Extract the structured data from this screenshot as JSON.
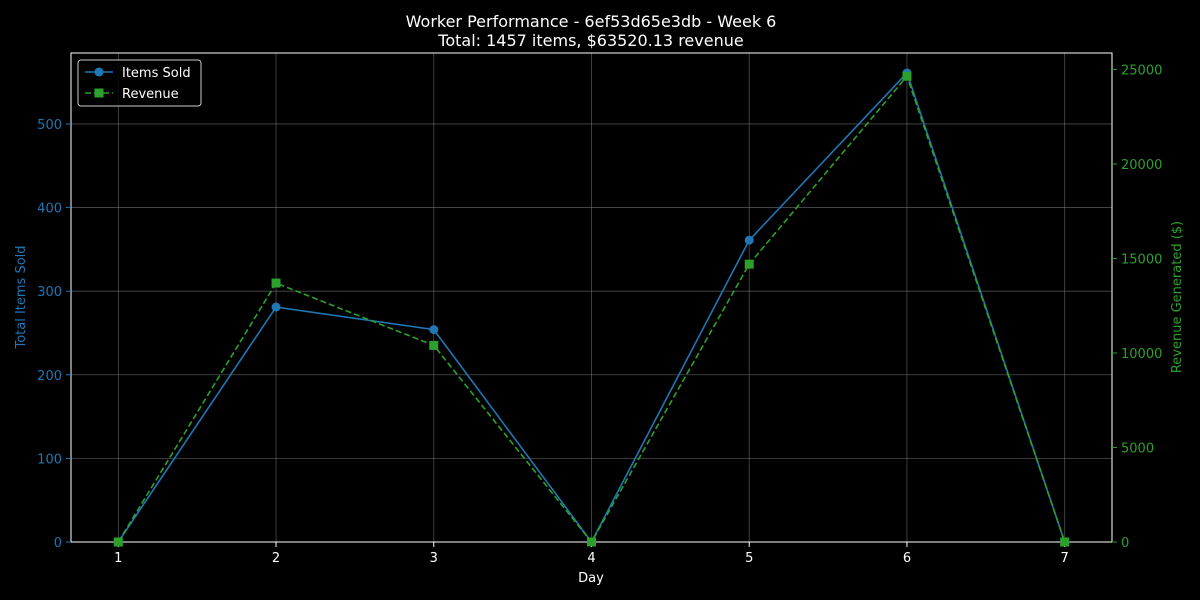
{
  "chart_data": {
    "type": "line",
    "title": "Worker Performance - 6ef53d65e3db - Week 6",
    "subtitle": "Total: 1457 items, $63520.13 revenue",
    "xlabel": "Day",
    "ylabel": "Total Items Sold",
    "y2label": "Revenue Generated ($)",
    "x": [
      1,
      2,
      3,
      4,
      5,
      6,
      7
    ],
    "xlim": [
      0.7,
      7.3
    ],
    "ylim": [
      0,
      584.85
    ],
    "y2lim": [
      0,
      25870
    ],
    "yticks": [
      0,
      100,
      200,
      300,
      400,
      500
    ],
    "y2ticks": [
      0,
      5000,
      10000,
      15000,
      20000,
      25000
    ],
    "grid": true,
    "legend_position": "top-left",
    "series": [
      {
        "name": "Items Sold",
        "axis": "left",
        "color": "#1f77b4",
        "marker": "circle",
        "linestyle": "solid",
        "values": [
          0,
          281,
          254,
          0,
          361,
          561,
          0
        ]
      },
      {
        "name": "Revenue",
        "axis": "right",
        "color": "#2ca02c",
        "marker": "square",
        "linestyle": "dashed",
        "values": [
          0,
          13700,
          10400,
          0,
          14700,
          24640,
          0
        ]
      }
    ]
  },
  "colors": {
    "background": "#000000",
    "foreground": "#ffffff",
    "grid": "#808080",
    "left_axis": "#1f77b4",
    "right_axis": "#2ca02c"
  }
}
